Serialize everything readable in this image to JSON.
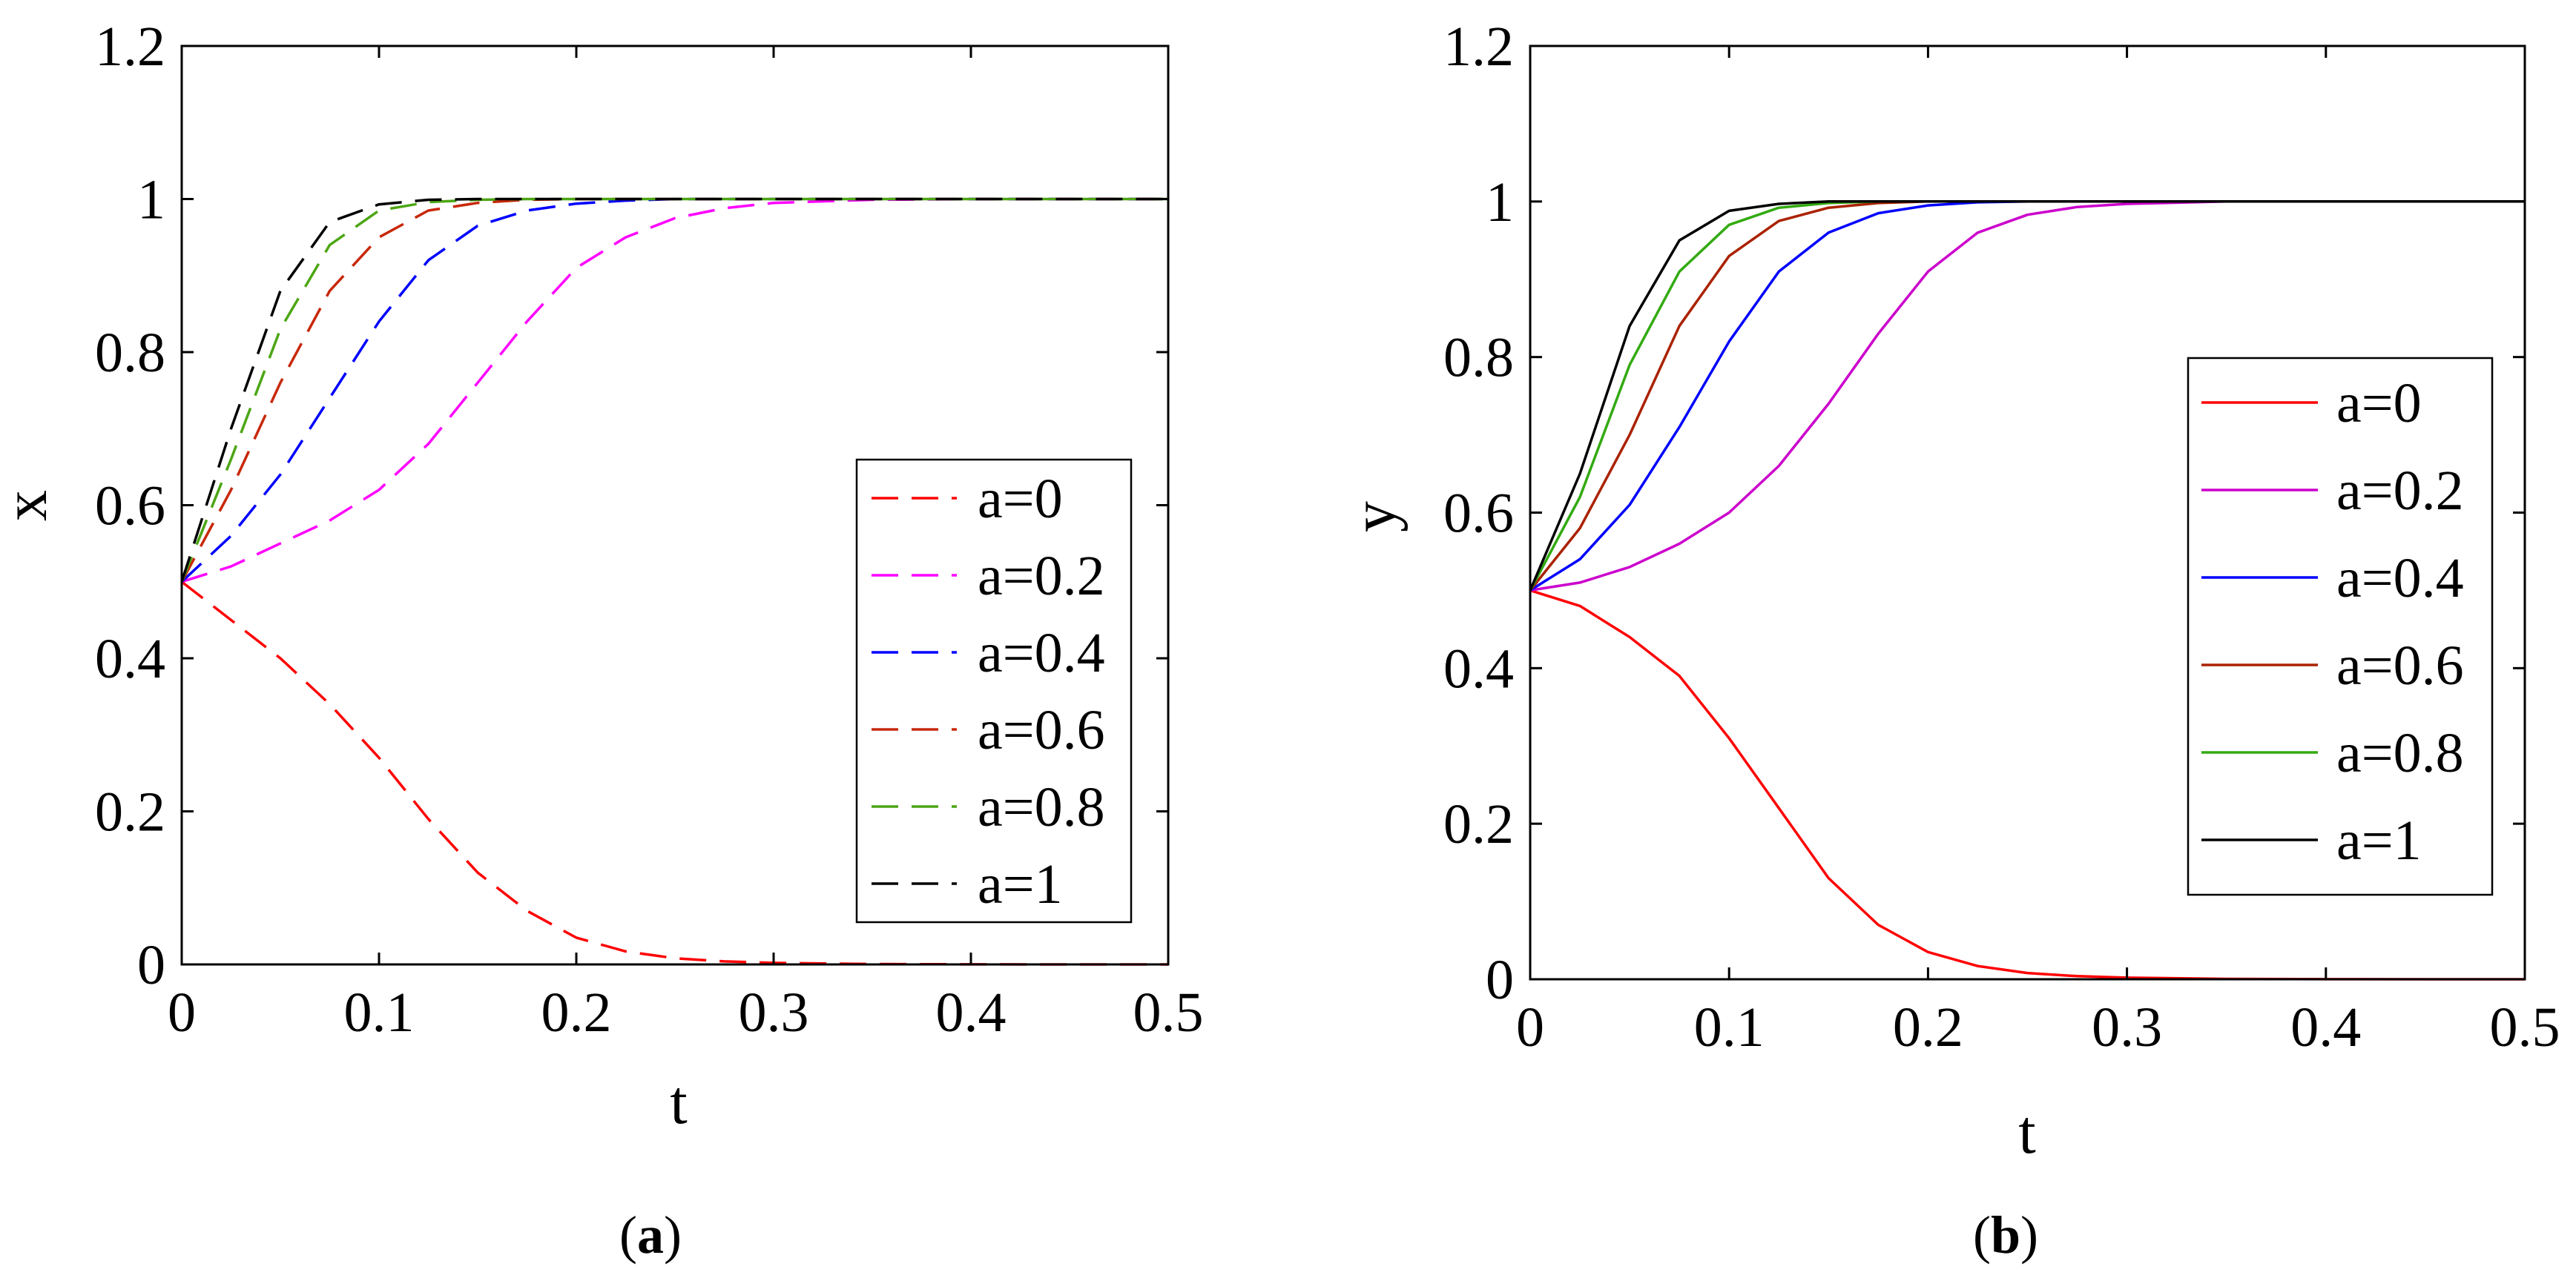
{
  "figure": {
    "panels": [
      {
        "caption_letter": "a",
        "title": "",
        "xlabel": "t",
        "ylabel": "x",
        "xlim": [
          0,
          0.5
        ],
        "ylim": [
          0,
          1.2
        ],
        "xticks": [
          0,
          0.1,
          0.2,
          0.3,
          0.4,
          0.5
        ],
        "yticks": [
          0,
          0.2,
          0.4,
          0.6,
          0.8,
          1,
          1.2
        ],
        "xtick_labels": [
          "0",
          "0.1",
          "0.2",
          "0.3",
          "0.4",
          "0.5"
        ],
        "ytick_labels": [
          "0",
          "0.2",
          "0.4",
          "0.6",
          "0.8",
          "1",
          "1.2"
        ],
        "line_style": "dashed",
        "legend_position": "center-right"
      },
      {
        "caption_letter": "b",
        "title": "",
        "xlabel": "t",
        "ylabel": "y",
        "xlim": [
          0,
          0.5
        ],
        "ylim": [
          0,
          1.2
        ],
        "xticks": [
          0,
          0.1,
          0.2,
          0.3,
          0.4,
          0.5
        ],
        "yticks": [
          0,
          0.2,
          0.4,
          0.6,
          0.8,
          1,
          1.2
        ],
        "xtick_labels": [
          "0",
          "0.1",
          "0.2",
          "0.3",
          "0.4",
          "0.5"
        ],
        "ytick_labels": [
          "0",
          "0.2",
          "0.4",
          "0.6",
          "0.8",
          "1",
          "1.2"
        ],
        "line_style": "solid",
        "legend_position": "center-right"
      }
    ]
  },
  "chart_data": [
    {
      "type": "line",
      "panel": "a",
      "title": "",
      "xlabel": "t",
      "ylabel": "x",
      "xlim": [
        0,
        0.5
      ],
      "ylim": [
        0,
        1.2
      ],
      "x": [
        0,
        0.025,
        0.05,
        0.075,
        0.1,
        0.125,
        0.15,
        0.175,
        0.2,
        0.225,
        0.25,
        0.275,
        0.3,
        0.35,
        0.4,
        0.45,
        0.5
      ],
      "series": [
        {
          "name": "a=0",
          "color": "#ff0000",
          "values": [
            0.5,
            0.45,
            0.4,
            0.34,
            0.27,
            0.19,
            0.12,
            0.07,
            0.035,
            0.017,
            0.008,
            0.004,
            0.002,
            0.0005,
            0.0001,
            0,
            0
          ]
        },
        {
          "name": "a=0.2",
          "color": "#ff00ff",
          "values": [
            0.5,
            0.52,
            0.55,
            0.58,
            0.62,
            0.68,
            0.76,
            0.84,
            0.91,
            0.95,
            0.975,
            0.988,
            0.995,
            0.999,
            1,
            1,
            1
          ]
        },
        {
          "name": "a=0.4",
          "color": "#0000ff",
          "values": [
            0.5,
            0.56,
            0.64,
            0.74,
            0.84,
            0.92,
            0.965,
            0.985,
            0.994,
            0.998,
            1,
            1,
            1,
            1,
            1,
            1,
            1
          ]
        },
        {
          "name": "a=0.6",
          "color": "#c8280a",
          "values": [
            0.5,
            0.62,
            0.76,
            0.88,
            0.95,
            0.985,
            0.995,
            0.999,
            1,
            1,
            1,
            1,
            1,
            1,
            1,
            1,
            1
          ]
        },
        {
          "name": "a=0.8",
          "color": "#4ca614",
          "values": [
            0.5,
            0.66,
            0.83,
            0.94,
            0.985,
            0.996,
            0.999,
            1,
            1,
            1,
            1,
            1,
            1,
            1,
            1,
            1,
            1
          ]
        },
        {
          "name": "a=1",
          "color": "#000000",
          "values": [
            0.5,
            0.7,
            0.88,
            0.97,
            0.993,
            0.999,
            1,
            1,
            1,
            1,
            1,
            1,
            1,
            1,
            1,
            1,
            1
          ]
        }
      ]
    },
    {
      "type": "line",
      "panel": "b",
      "title": "",
      "xlabel": "t",
      "ylabel": "y",
      "xlim": [
        0,
        0.5
      ],
      "ylim": [
        0,
        1.2
      ],
      "x": [
        0,
        0.025,
        0.05,
        0.075,
        0.1,
        0.125,
        0.15,
        0.175,
        0.2,
        0.225,
        0.25,
        0.275,
        0.3,
        0.35,
        0.4,
        0.45,
        0.5
      ],
      "series": [
        {
          "name": "a=0",
          "color": "#ff0000",
          "values": [
            0.5,
            0.48,
            0.44,
            0.39,
            0.31,
            0.22,
            0.13,
            0.07,
            0.035,
            0.017,
            0.008,
            0.004,
            0.002,
            0.0005,
            0.0001,
            0,
            0
          ]
        },
        {
          "name": "a=0.2",
          "color": "#cc00cc",
          "values": [
            0.5,
            0.51,
            0.53,
            0.56,
            0.6,
            0.66,
            0.74,
            0.83,
            0.91,
            0.96,
            0.983,
            0.993,
            0.997,
            1,
            1,
            1,
            1
          ]
        },
        {
          "name": "a=0.4",
          "color": "#0000ff",
          "values": [
            0.5,
            0.54,
            0.61,
            0.71,
            0.82,
            0.91,
            0.96,
            0.985,
            0.995,
            0.999,
            1,
            1,
            1,
            1,
            1,
            1,
            1
          ]
        },
        {
          "name": "a=0.6",
          "color": "#aa2200",
          "values": [
            0.5,
            0.58,
            0.7,
            0.84,
            0.93,
            0.975,
            0.992,
            0.998,
            1,
            1,
            1,
            1,
            1,
            1,
            1,
            1,
            1
          ]
        },
        {
          "name": "a=0.8",
          "color": "#33aa11",
          "values": [
            0.5,
            0.62,
            0.79,
            0.91,
            0.97,
            0.992,
            0.998,
            1,
            1,
            1,
            1,
            1,
            1,
            1,
            1,
            1,
            1
          ]
        },
        {
          "name": "a=1",
          "color": "#000000",
          "values": [
            0.5,
            0.65,
            0.84,
            0.95,
            0.988,
            0.997,
            1,
            1,
            1,
            1,
            1,
            1,
            1,
            1,
            1,
            1,
            1
          ]
        }
      ]
    }
  ]
}
